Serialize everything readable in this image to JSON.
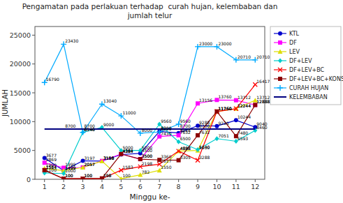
{
  "chart_data": {
    "type": "line",
    "title": "Pengamatan pada perlakuan terhadap  curah hujan, kelembaban dan\njumlah telur",
    "x_label": "Minggu ke-",
    "y_label": "JUMLAH",
    "x": [
      1,
      2,
      3,
      4,
      5,
      6,
      7,
      8,
      9,
      10,
      11,
      12
    ],
    "series": [
      {
        "name": "KTL",
        "color": "#0000CD",
        "marker": "circle",
        "values": [
          3677,
          1499,
          3197,
          3158,
          4297,
          4500,
          8300,
          8028,
          9288,
          9235,
          10244,
          9040
        ]
      },
      {
        "name": "DF",
        "color": "#FF00FF",
        "marker": "square",
        "values": [
          2869,
          1999,
          2057,
          3180,
          4384,
          3500,
          7430,
          7632,
          13156,
          13760,
          13712,
          12888
        ]
      },
      {
        "name": "LEV",
        "color": "#DDDD00",
        "marker": "triangle",
        "values": [
          1900,
          1499,
          2057,
          3158,
          100,
          782,
          1550,
          4888,
          5000,
          11760,
          12244,
          13712
        ]
      },
      {
        "name": "DF+LEV",
        "color": "#00CCCC",
        "marker": "diamond",
        "values": [
          1100,
          1000,
          8140,
          9000,
          5000,
          5000,
          9560,
          6500,
          5140,
          7051,
          6593,
          8460
        ]
      },
      {
        "name": "DF+LEV+BC",
        "color": "#FF0000",
        "marker": "x",
        "values": [
          1584,
          100,
          100,
          100,
          1583,
          2198,
          2617,
          4888,
          3288,
          11760,
          12244,
          16417
        ]
      },
      {
        "name": "DF+LEV+BC+KONS",
        "color": "#8B0000",
        "marker": "square",
        "values": [
          1584,
          100,
          100,
          158,
          4384,
          3500,
          3360,
          3305,
          7632,
          11760,
          7480,
          12888
        ]
      },
      {
        "name": "CURAH HUJAN",
        "color": "#00AAFF",
        "marker": "plus",
        "values": [
          16790,
          23430,
          8140,
          13040,
          11000,
          8000,
          8200,
          9560,
          23000,
          23000,
          20710,
          20710
        ]
      },
      {
        "name": "KELEMBABAN",
        "color": "#000080",
        "marker": "none",
        "values": [
          8700,
          8700,
          8700,
          8700,
          8700,
          8700,
          8700,
          8700,
          8700,
          8700,
          8700,
          8700
        ],
        "value_labels": [
          null,
          "8700",
          "8700",
          null,
          null,
          null,
          null,
          "8700",
          "8700",
          null,
          null,
          null
        ]
      }
    ],
    "xlim": [
      0.5,
      12.5
    ],
    "xticks": [
      1,
      2,
      3,
      4,
      5,
      6,
      7,
      8,
      9,
      10,
      11,
      12
    ],
    "ylim": [
      0,
      26500
    ],
    "yticks": [
      0,
      5000,
      10000,
      15000,
      20000,
      25000
    ],
    "grid": false,
    "legend": "right",
    "data_labels": true
  }
}
